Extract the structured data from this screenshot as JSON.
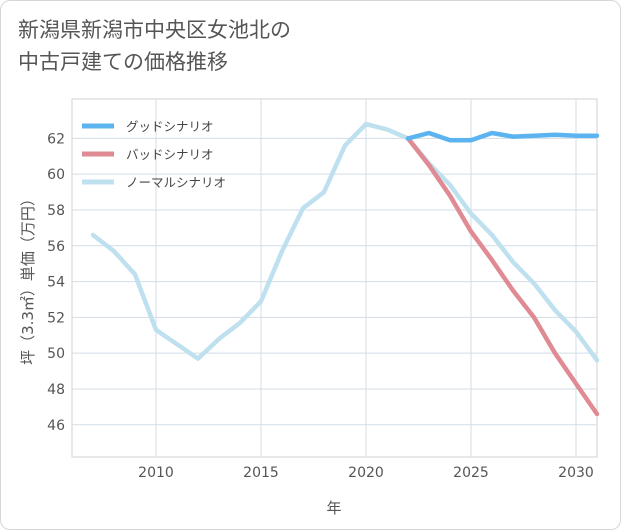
{
  "title_line1": "新潟県新潟市中央区女池北の",
  "title_line2": "中古戸建ての価格推移",
  "chart_data": {
    "type": "line",
    "title": "新潟県新潟市中央区女池北の中古戸建ての価格推移",
    "xlabel": "年",
    "ylabel": "坪（3.3㎡）単価（万円）",
    "xlim": [
      2006,
      2031
    ],
    "ylim": [
      44.2,
      64.2
    ],
    "x_ticks": [
      2010,
      2015,
      2020,
      2025,
      2030
    ],
    "y_ticks": [
      46,
      48,
      50,
      52,
      54,
      56,
      58,
      60,
      62
    ],
    "grid": true,
    "legend_position": "top-left",
    "series": [
      {
        "name": "グッドシナリオ",
        "color": "#5bb4ef",
        "x": [
          2022,
          2023,
          2024,
          2025,
          2026,
          2027,
          2028,
          2029,
          2030,
          2031
        ],
        "values": [
          62.0,
          62.3,
          61.9,
          61.9,
          62.3,
          62.1,
          62.15,
          62.2,
          62.15,
          62.15
        ]
      },
      {
        "name": "バッドシナリオ",
        "color": "#e08a93",
        "x": [
          2022,
          2023,
          2024,
          2025,
          2026,
          2027,
          2028,
          2029,
          2030,
          2031
        ],
        "values": [
          62.0,
          60.5,
          58.8,
          56.8,
          55.2,
          53.5,
          52.0,
          50.0,
          48.3,
          46.6
        ]
      },
      {
        "name": "ノーマルシナリオ",
        "color": "#bfe0ef",
        "x": [
          2007,
          2008,
          2009,
          2010,
          2011,
          2012,
          2013,
          2014,
          2015,
          2016,
          2017,
          2018,
          2019,
          2020,
          2021,
          2022,
          2023,
          2024,
          2025,
          2026,
          2027,
          2028,
          2029,
          2030,
          2031
        ],
        "values": [
          56.6,
          55.7,
          54.4,
          51.3,
          50.5,
          49.7,
          50.8,
          51.7,
          52.9,
          55.7,
          58.1,
          59.0,
          61.6,
          62.8,
          62.5,
          62.0,
          60.6,
          59.4,
          57.8,
          56.6,
          55.1,
          53.9,
          52.4,
          51.2,
          49.6
        ]
      }
    ]
  }
}
